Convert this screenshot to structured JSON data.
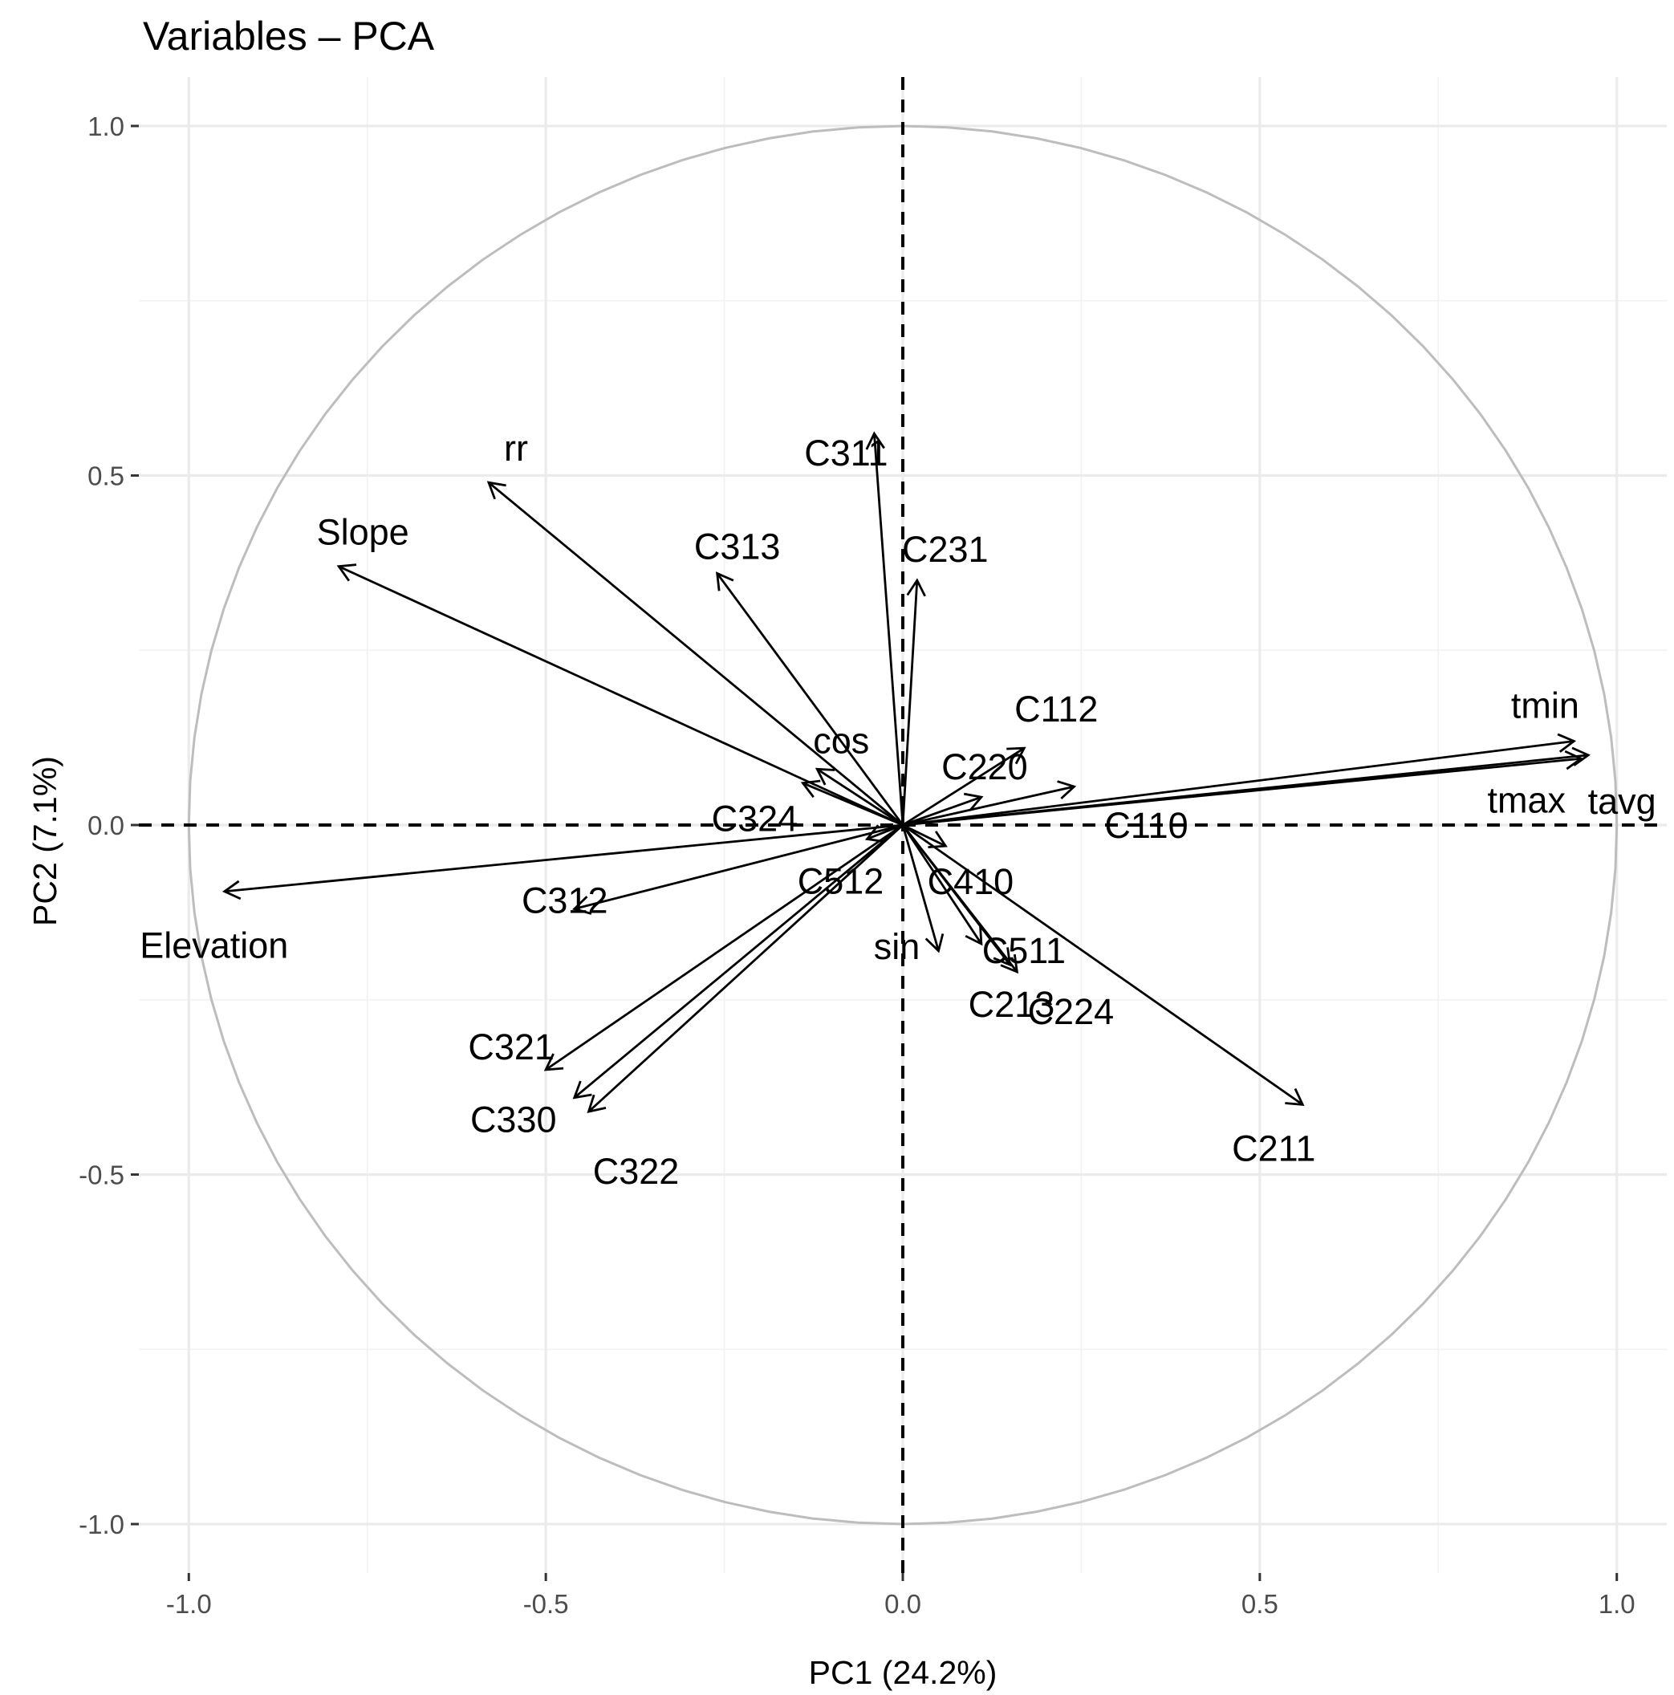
{
  "chart_data": {
    "type": "scatter",
    "subtype": "pca-variable-correlation-circle",
    "title": "Variables – PCA",
    "xlabel": "PC1 (24.2%)",
    "ylabel": "PC2 (7.1%)",
    "xlim": [
      -1.07,
      1.07
    ],
    "ylim": [
      -1.07,
      1.07
    ],
    "x_ticks": [
      -1.0,
      -0.5,
      0.0,
      0.5,
      1.0
    ],
    "x_tick_labels": [
      "-1.0",
      "-0.5",
      "0.0",
      "0.5",
      "1.0"
    ],
    "y_ticks": [
      -1.0,
      -0.5,
      0.0,
      0.5,
      1.0
    ],
    "y_tick_labels": [
      "-1.0",
      "-0.5",
      "0.0",
      "0.5",
      "1.0"
    ],
    "grid": true,
    "unit_circle": true,
    "zero_lines": "dashed",
    "variables": [
      {
        "name": "tmin",
        "x": 0.94,
        "y": 0.12
      },
      {
        "name": "tmax",
        "x": 0.95,
        "y": 0.095
      },
      {
        "name": "tavg",
        "x": 0.96,
        "y": 0.1
      },
      {
        "name": "Elevation",
        "x": -0.95,
        "y": -0.095
      },
      {
        "name": "Slope",
        "x": -0.79,
        "y": 0.37
      },
      {
        "name": "rr",
        "x": -0.58,
        "y": 0.49
      },
      {
        "name": "C311",
        "x": -0.04,
        "y": 0.56
      },
      {
        "name": "C313",
        "x": -0.26,
        "y": 0.36
      },
      {
        "name": "C231",
        "x": 0.02,
        "y": 0.35
      },
      {
        "name": "C112",
        "x": 0.17,
        "y": 0.11
      },
      {
        "name": "C220",
        "x": 0.11,
        "y": 0.04
      },
      {
        "name": "C110",
        "x": 0.24,
        "y": 0.055
      },
      {
        "name": "cos",
        "x": -0.12,
        "y": 0.08
      },
      {
        "name": "C324",
        "x": -0.14,
        "y": 0.06
      },
      {
        "name": "C512",
        "x": -0.05,
        "y": -0.02
      },
      {
        "name": "C410",
        "x": 0.06,
        "y": -0.03
      },
      {
        "name": "C312",
        "x": -0.46,
        "y": -0.12
      },
      {
        "name": "sin",
        "x": 0.05,
        "y": -0.18
      },
      {
        "name": "C511",
        "x": 0.11,
        "y": -0.17
      },
      {
        "name": "C213",
        "x": 0.15,
        "y": -0.2
      },
      {
        "name": "C224",
        "x": 0.16,
        "y": -0.21
      },
      {
        "name": "C211",
        "x": 0.56,
        "y": -0.4
      },
      {
        "name": "C321",
        "x": -0.5,
        "y": -0.35
      },
      {
        "name": "C330",
        "x": -0.46,
        "y": -0.39
      },
      {
        "name": "C322",
        "x": -0.44,
        "y": -0.41
      }
    ]
  }
}
